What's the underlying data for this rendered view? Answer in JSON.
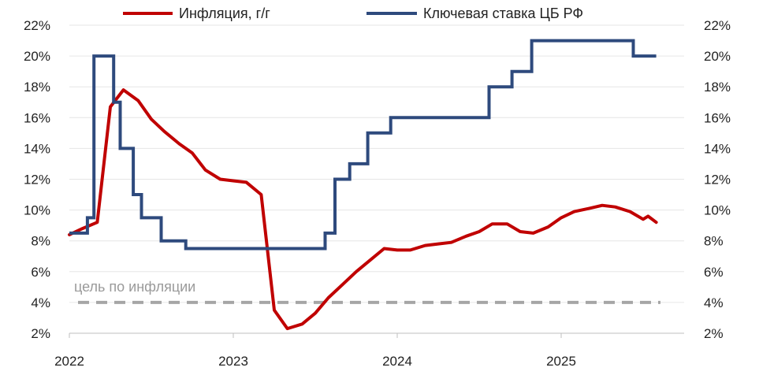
{
  "chart_data": {
    "type": "line",
    "legend": {
      "placement": "top",
      "entries": [
        "Инфляция, г/г",
        "Ключевая ставка ЦБ РФ"
      ]
    },
    "grid": true,
    "y_axis_left": {
      "range": [
        2,
        22
      ],
      "ticks": [
        "2%",
        "4%",
        "6%",
        "8%",
        "10%",
        "12%",
        "14%",
        "16%",
        "18%",
        "20%",
        "22%"
      ]
    },
    "y_axis_right": {
      "range": [
        2,
        22
      ],
      "ticks": [
        "2%",
        "4%",
        "6%",
        "8%",
        "10%",
        "12%",
        "14%",
        "16%",
        "18%",
        "20%",
        "22%"
      ]
    },
    "x_axis": {
      "range": [
        2022.0,
        2025.75
      ],
      "ticks": [
        "2022",
        "2023",
        "2024",
        "2025"
      ]
    },
    "target": {
      "label": "цель по инфляции",
      "value": 4,
      "color": "#a6a6a6"
    },
    "series": [
      {
        "name": "Инфляция, г/г",
        "color": "#c00000",
        "points": [
          [
            2022.0,
            8.4
          ],
          [
            2022.08,
            8.8
          ],
          [
            2022.17,
            9.2
          ],
          [
            2022.25,
            16.7
          ],
          [
            2022.33,
            17.8
          ],
          [
            2022.42,
            17.1
          ],
          [
            2022.5,
            15.9
          ],
          [
            2022.58,
            15.1
          ],
          [
            2022.67,
            14.3
          ],
          [
            2022.75,
            13.7
          ],
          [
            2022.83,
            12.6
          ],
          [
            2022.92,
            12.0
          ],
          [
            2023.0,
            11.9
          ],
          [
            2023.08,
            11.8
          ],
          [
            2023.17,
            11.0
          ],
          [
            2023.25,
            3.5
          ],
          [
            2023.33,
            2.3
          ],
          [
            2023.42,
            2.6
          ],
          [
            2023.5,
            3.3
          ],
          [
            2023.58,
            4.3
          ],
          [
            2023.67,
            5.2
          ],
          [
            2023.75,
            6.0
          ],
          [
            2023.83,
            6.7
          ],
          [
            2023.92,
            7.5
          ],
          [
            2024.0,
            7.4
          ],
          [
            2024.08,
            7.4
          ],
          [
            2024.17,
            7.7
          ],
          [
            2024.25,
            7.8
          ],
          [
            2024.33,
            7.9
          ],
          [
            2024.42,
            8.3
          ],
          [
            2024.5,
            8.6
          ],
          [
            2024.58,
            9.1
          ],
          [
            2024.67,
            9.1
          ],
          [
            2024.75,
            8.6
          ],
          [
            2024.83,
            8.5
          ],
          [
            2024.92,
            8.9
          ],
          [
            2025.0,
            9.5
          ],
          [
            2025.08,
            9.9
          ],
          [
            2025.17,
            10.1
          ],
          [
            2025.25,
            10.3
          ],
          [
            2025.33,
            10.2
          ],
          [
            2025.42,
            9.9
          ],
          [
            2025.5,
            9.4
          ],
          [
            2025.53,
            9.6
          ],
          [
            2025.58,
            9.2
          ]
        ]
      },
      {
        "name": "Ключевая ставка ЦБ РФ",
        "color": "#2e4a7d",
        "points": [
          [
            2022.0,
            8.5
          ],
          [
            2022.11,
            8.5
          ],
          [
            2022.11,
            9.5
          ],
          [
            2022.15,
            9.5
          ],
          [
            2022.15,
            20.0
          ],
          [
            2022.27,
            20.0
          ],
          [
            2022.27,
            17.0
          ],
          [
            2022.31,
            17.0
          ],
          [
            2022.31,
            14.0
          ],
          [
            2022.39,
            14.0
          ],
          [
            2022.39,
            11.0
          ],
          [
            2022.44,
            11.0
          ],
          [
            2022.44,
            9.5
          ],
          [
            2022.56,
            9.5
          ],
          [
            2022.56,
            8.0
          ],
          [
            2022.71,
            8.0
          ],
          [
            2022.71,
            7.5
          ],
          [
            2023.56,
            7.5
          ],
          [
            2023.56,
            8.5
          ],
          [
            2023.62,
            8.5
          ],
          [
            2023.62,
            12.0
          ],
          [
            2023.71,
            12.0
          ],
          [
            2023.71,
            13.0
          ],
          [
            2023.82,
            13.0
          ],
          [
            2023.82,
            15.0
          ],
          [
            2023.96,
            15.0
          ],
          [
            2023.96,
            16.0
          ],
          [
            2024.56,
            16.0
          ],
          [
            2024.56,
            18.0
          ],
          [
            2024.7,
            18.0
          ],
          [
            2024.7,
            19.0
          ],
          [
            2024.82,
            19.0
          ],
          [
            2024.82,
            21.0
          ],
          [
            2025.44,
            21.0
          ],
          [
            2025.44,
            20.0
          ],
          [
            2025.58,
            20.0
          ]
        ]
      }
    ]
  }
}
